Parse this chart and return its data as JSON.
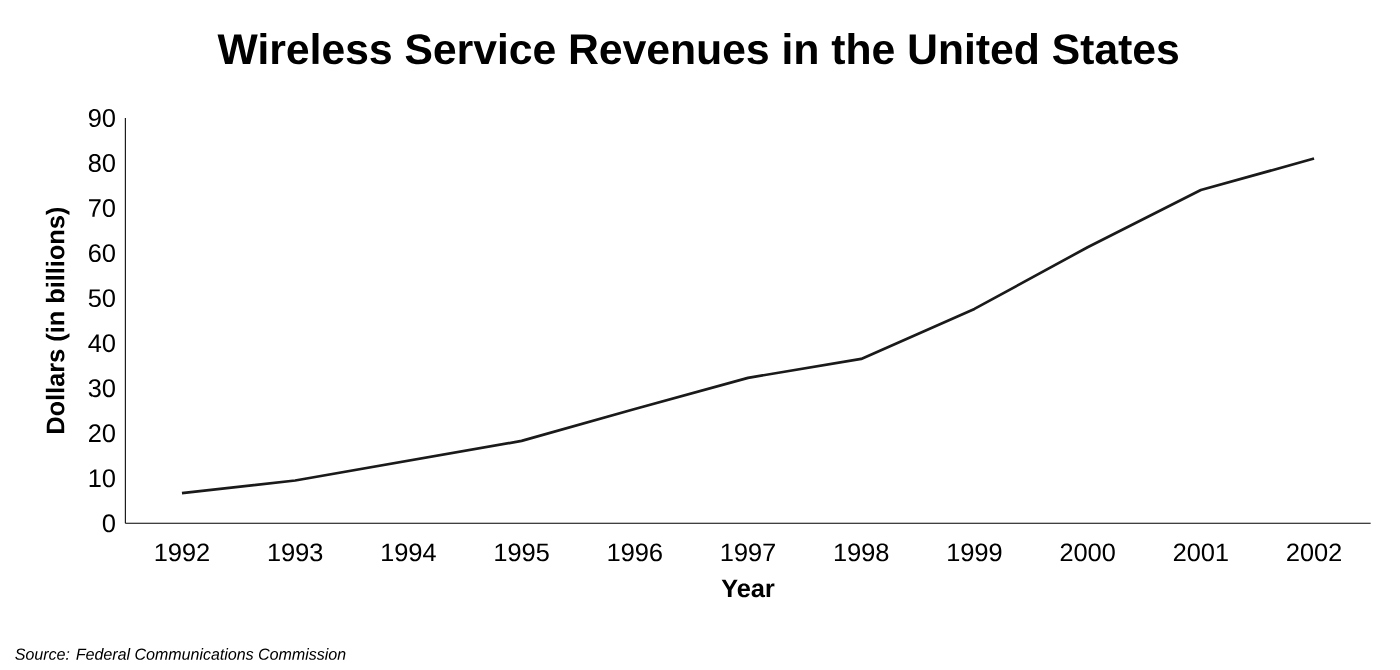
{
  "chart_data": {
    "type": "line",
    "title": "Wireless Service Revenues in the United States",
    "xlabel": "Year",
    "ylabel": "Dollars (in billions)",
    "categories": [
      "1992",
      "1993",
      "1994",
      "1995",
      "1996",
      "1997",
      "1998",
      "1999",
      "2000",
      "2001",
      "2002"
    ],
    "values": [
      6.7,
      9.5,
      13.9,
      18.3,
      25.4,
      32.3,
      36.5,
      47.6,
      61.3,
      74,
      81
    ],
    "color": "#1a1a1a",
    "ylim": [
      0,
      90
    ],
    "yticks": [
      0,
      10,
      20,
      30,
      40,
      50,
      60,
      70,
      80,
      90
    ],
    "grid": false,
    "marker": "none",
    "annotations": [
      "Source: Federal Communications Commission"
    ]
  }
}
